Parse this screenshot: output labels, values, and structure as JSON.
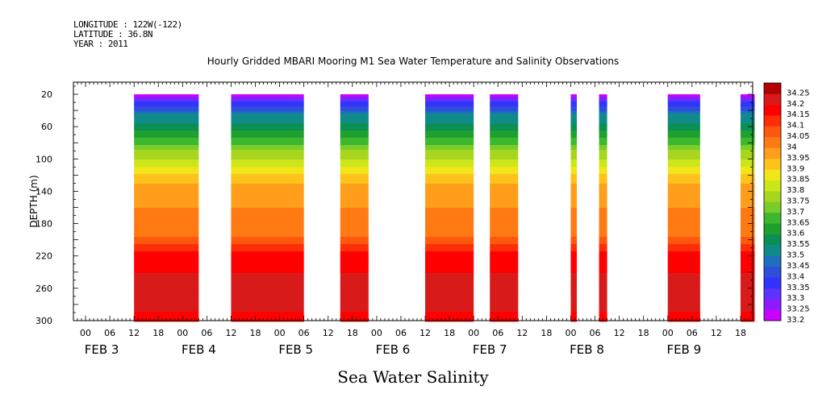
{
  "header": {
    "longitude": "LONGITUDE : 122W(-122)",
    "latitude": "LATITUDE : 36.8N",
    "year": "YEAR : 2011"
  },
  "chart_data": {
    "type": "heatmap",
    "title": "Hourly Gridded MBARI Mooring M1 Sea Water Temperature and Salinity Observations",
    "xlabel": "Sea Water Salinity",
    "ylabel": "DEPTH (m)",
    "x_range": [
      "2011-02-02T21:00",
      "2011-02-09T21:00"
    ],
    "x_hour_ticks": [
      "00",
      "06",
      "12",
      "18",
      "00",
      "06",
      "12",
      "18",
      "00",
      "06",
      "12",
      "18",
      "00",
      "06",
      "12",
      "18",
      "00",
      "06",
      "12",
      "18",
      "00",
      "06",
      "12",
      "18",
      "00",
      "06",
      "12",
      "18"
    ],
    "x_day_labels": [
      "FEB  3",
      "FEB  4",
      "FEB  5",
      "FEB  6",
      "FEB  7",
      "FEB  8",
      "FEB  9"
    ],
    "ylim": [
      300,
      5
    ],
    "y_ticks": [
      20,
      60,
      100,
      140,
      180,
      220,
      260,
      300
    ],
    "colorbar_levels": [
      33.2,
      33.25,
      33.3,
      33.35,
      33.4,
      33.45,
      33.5,
      33.55,
      33.6,
      33.65,
      33.7,
      33.75,
      33.8,
      33.85,
      33.9,
      33.95,
      34,
      34.05,
      34.1,
      34.15,
      34.2,
      34.25
    ],
    "colorbar_labels": [
      "33.2",
      "33.25",
      "33.3",
      "33.35",
      "33.4",
      "33.45",
      "33.5",
      "33.55",
      "33.6",
      "33.65",
      "33.7",
      "33.75",
      "33.8",
      "33.85",
      "33.9",
      "33.95",
      "34",
      "34.05",
      "34.1",
      "34.15",
      "34.2",
      "34.25"
    ],
    "colors": [
      "#cc00ff",
      "#8f1aff",
      "#5c33ff",
      "#3333ff",
      "#2e4ddb",
      "#1f6fbf",
      "#0f8a8a",
      "#0a8f55",
      "#1fa02e",
      "#3db82e",
      "#7acc29",
      "#a8d61f",
      "#cce61a",
      "#f0e61a",
      "#ffc21a",
      "#ff9e1a",
      "#ff7a12",
      "#ff570d",
      "#ff2e05",
      "#ff0000",
      "#d91a1a",
      "#b30000"
    ],
    "data_blocks": [
      {
        "start": "2011-02-03T12:00",
        "end": "2011-02-04T04:00"
      },
      {
        "start": "2011-02-04T12:00",
        "end": "2011-02-05T06:00"
      },
      {
        "start": "2011-02-05T15:00",
        "end": "2011-02-05T22:00"
      },
      {
        "start": "2011-02-06T12:00",
        "end": "2011-02-07T00:00"
      },
      {
        "start": "2011-02-07T04:00",
        "end": "2011-02-07T11:00"
      },
      {
        "start": "2011-02-08T00:00",
        "end": "2011-02-08T01:30"
      },
      {
        "start": "2011-02-08T07:00",
        "end": "2011-02-08T09:00"
      },
      {
        "start": "2011-02-09T00:00",
        "end": "2011-02-09T08:00"
      },
      {
        "start": "2011-02-09T18:00",
        "end": "2011-02-09T21:30"
      }
    ],
    "profile": [
      {
        "depth": 20,
        "salinity": 33.2
      },
      {
        "depth": 30,
        "salinity": 33.35
      },
      {
        "depth": 45,
        "salinity": 33.5
      },
      {
        "depth": 65,
        "salinity": 33.6
      },
      {
        "depth": 90,
        "salinity": 33.75
      },
      {
        "depth": 110,
        "salinity": 33.85
      },
      {
        "depth": 130,
        "salinity": 33.95
      },
      {
        "depth": 160,
        "salinity": 34.0
      },
      {
        "depth": 195,
        "salinity": 34.05
      },
      {
        "depth": 215,
        "salinity": 34.15
      },
      {
        "depth": 240,
        "salinity": 34.2
      },
      {
        "depth": 290,
        "salinity": 34.2
      },
      {
        "depth": 300,
        "salinity": 34.15
      }
    ]
  }
}
